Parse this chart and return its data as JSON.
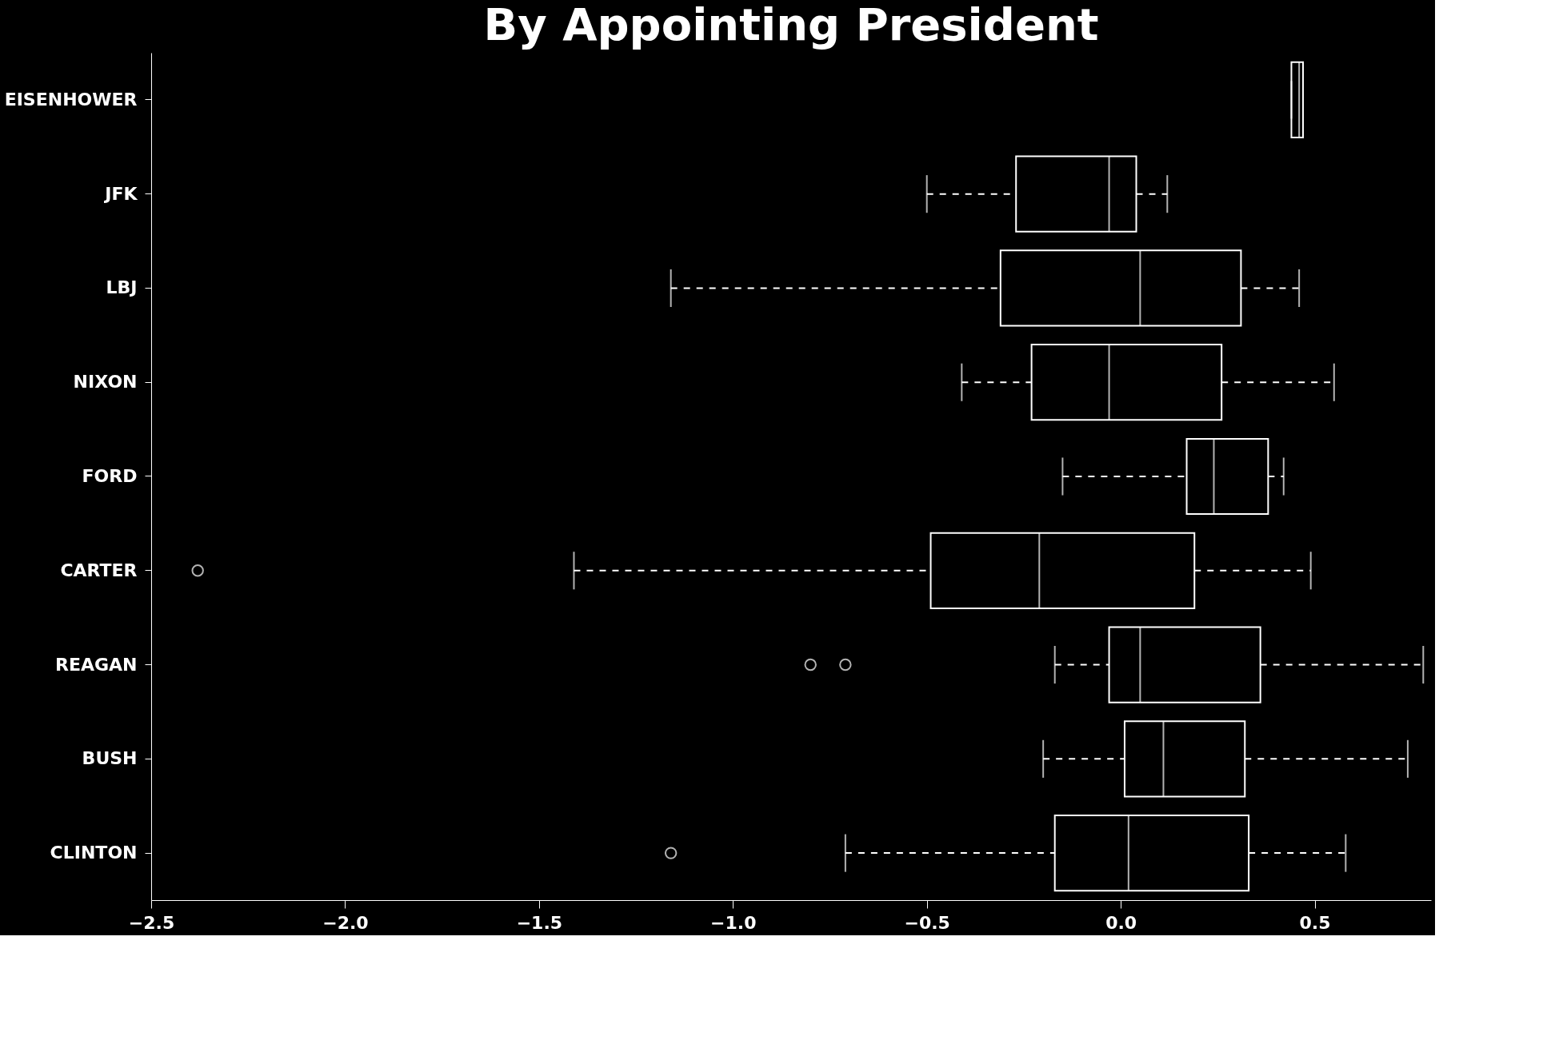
{
  "chart_data": {
    "type": "box",
    "orientation": "horizontal",
    "title": "By Appointing President",
    "categories": [
      "EISENHOWER",
      "JFK",
      "LBJ",
      "NIXON",
      "FORD",
      "CARTER",
      "REAGAN",
      "BUSH",
      "CLINTON"
    ],
    "boxes": [
      {
        "low": 0.44,
        "q1": 0.44,
        "median": 0.46,
        "q3": 0.47,
        "high": 0.47
      },
      {
        "low": -0.5,
        "q1": -0.27,
        "median": -0.03,
        "q3": 0.04,
        "high": 0.12
      },
      {
        "low": -1.16,
        "q1": -0.31,
        "median": 0.05,
        "q3": 0.31,
        "high": 0.46
      },
      {
        "low": -0.41,
        "q1": -0.23,
        "median": -0.03,
        "q3": 0.26,
        "high": 0.55
      },
      {
        "low": -0.15,
        "q1": 0.17,
        "median": 0.24,
        "q3": 0.38,
        "high": 0.42
      },
      {
        "low": -1.41,
        "q1": -0.49,
        "median": -0.21,
        "q3": 0.19,
        "high": 0.49,
        "outliers": [
          -2.38
        ]
      },
      {
        "low": -0.17,
        "q1": -0.03,
        "median": 0.05,
        "q3": 0.36,
        "high": 0.78,
        "outliers": [
          -0.8,
          -0.71
        ]
      },
      {
        "low": -0.2,
        "q1": 0.01,
        "median": 0.11,
        "q3": 0.32,
        "high": 0.74
      },
      {
        "low": -0.71,
        "q1": -0.17,
        "median": 0.02,
        "q3": 0.33,
        "high": 0.58,
        "outliers": [
          -1.16
        ]
      }
    ],
    "xlim": [
      -2.5,
      0.8
    ],
    "xticks": [
      {
        "value": -2.5,
        "label": "−2.5"
      },
      {
        "value": -2,
        "label": "−2.0"
      },
      {
        "value": -1.5,
        "label": "−1.5"
      },
      {
        "value": -1,
        "label": "−1.0"
      },
      {
        "value": -0.5,
        "label": "−0.5"
      },
      {
        "value": 0,
        "label": "0.0"
      },
      {
        "value": 0.5,
        "label": "0.5"
      }
    ]
  }
}
